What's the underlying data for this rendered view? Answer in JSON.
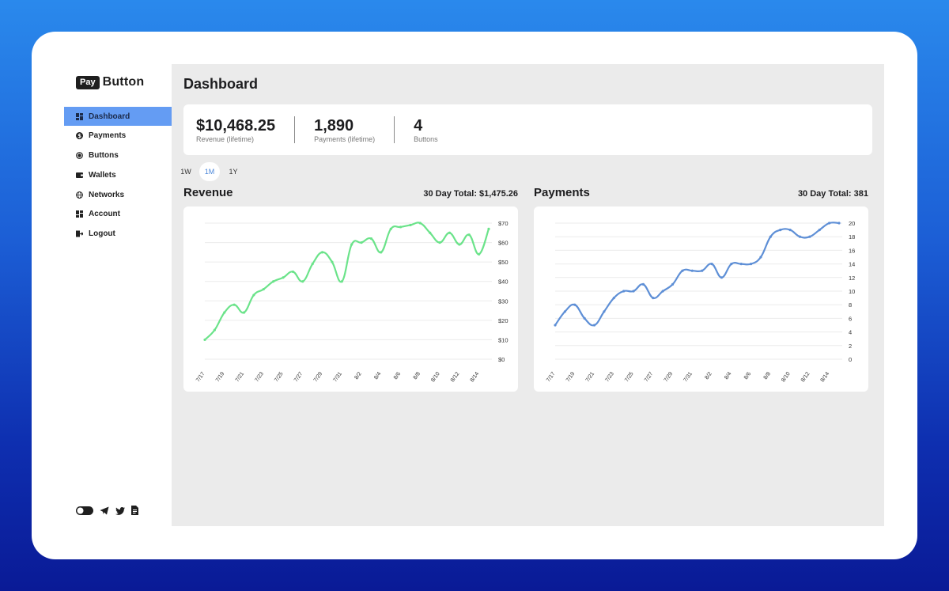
{
  "app": {
    "logo": {
      "badge": "Pay",
      "text": "Button"
    }
  },
  "sidebar": {
    "items": [
      {
        "label": "Dashboard",
        "icon": "dashboard-icon",
        "active": true
      },
      {
        "label": "Payments",
        "icon": "dollar-circle-icon",
        "active": false
      },
      {
        "label": "Buttons",
        "icon": "radio-button-icon",
        "active": false
      },
      {
        "label": "Wallets",
        "icon": "wallet-icon",
        "active": false
      },
      {
        "label": "Networks",
        "icon": "globe-icon",
        "active": false
      },
      {
        "label": "Account",
        "icon": "account-grid-icon",
        "active": false
      },
      {
        "label": "Logout",
        "icon": "logout-icon",
        "active": false
      }
    ],
    "footer_icons": [
      "theme-toggle-icon",
      "telegram-icon",
      "twitter-icon",
      "document-icon"
    ]
  },
  "main": {
    "title": "Dashboard",
    "stats": [
      {
        "value": "$10,468.25",
        "label": "Revenue (lifetime)"
      },
      {
        "value": "1,890",
        "label": "Payments (lifetime)"
      },
      {
        "value": "4",
        "label": "Buttons"
      }
    ],
    "range_tabs": [
      {
        "label": "1W",
        "active": false
      },
      {
        "label": "1M",
        "active": true
      },
      {
        "label": "1Y",
        "active": false
      }
    ],
    "revenue": {
      "title": "Revenue",
      "total": "30 Day Total: $1,475.26"
    },
    "payments": {
      "title": "Payments",
      "total": "30 Day Total: 381"
    }
  },
  "colors": {
    "accent": "#649cf3",
    "revenue_line": "#6be38a",
    "payments_line": "#5e8fd6",
    "main_bg": "#ebebeb"
  },
  "chart_data": [
    {
      "type": "line",
      "title": "Revenue",
      "subtitle": "30 Day Total: $1,475.26",
      "x": [
        "7/17",
        "7/18",
        "7/19",
        "7/20",
        "7/21",
        "7/22",
        "7/23",
        "7/24",
        "7/25",
        "7/26",
        "7/27",
        "7/28",
        "7/29",
        "7/30",
        "7/31",
        "8/1",
        "8/2",
        "8/3",
        "8/4",
        "8/5",
        "8/6",
        "8/7",
        "8/8",
        "8/9",
        "8/10",
        "8/11",
        "8/12",
        "8/13",
        "8/14",
        "8/15"
      ],
      "x_tick_labels": [
        "7/17",
        "7/19",
        "7/21",
        "7/23",
        "7/25",
        "7/27",
        "7/29",
        "7/31",
        "8/2",
        "8/4",
        "8/6",
        "8/8",
        "8/10",
        "8/12",
        "8/14"
      ],
      "series": [
        {
          "name": "Revenue",
          "color": "#6be38a",
          "values": [
            10,
            15,
            24,
            28,
            24,
            33,
            36,
            40,
            42,
            45,
            40,
            49,
            55,
            50,
            40,
            59,
            60,
            62,
            55,
            67,
            68,
            69,
            70,
            65,
            60,
            65,
            59,
            64,
            54,
            67
          ]
        }
      ],
      "y_tick_labels": [
        "$0",
        "$10",
        "$20",
        "$30",
        "$40",
        "$50",
        "$60",
        "$70"
      ],
      "ylim": [
        0,
        70
      ],
      "ystep": 10,
      "grid": true,
      "yaxis_position": "right",
      "xlabel": "",
      "ylabel": ""
    },
    {
      "type": "line",
      "title": "Payments",
      "subtitle": "30 Day Total: 381",
      "x": [
        "7/17",
        "7/18",
        "7/19",
        "7/20",
        "7/21",
        "7/22",
        "7/23",
        "7/24",
        "7/25",
        "7/26",
        "7/27",
        "7/28",
        "7/29",
        "7/30",
        "7/31",
        "8/1",
        "8/2",
        "8/3",
        "8/4",
        "8/5",
        "8/6",
        "8/7",
        "8/8",
        "8/9",
        "8/10",
        "8/11",
        "8/12",
        "8/13",
        "8/14",
        "8/15"
      ],
      "x_tick_labels": [
        "7/17",
        "7/19",
        "7/21",
        "7/23",
        "7/25",
        "7/27",
        "7/29",
        "7/31",
        "8/2",
        "8/4",
        "8/6",
        "8/8",
        "8/10",
        "8/12",
        "8/14"
      ],
      "series": [
        {
          "name": "Payments",
          "color": "#5e8fd6",
          "values": [
            5,
            7,
            8,
            6,
            5,
            7,
            9,
            10,
            10,
            11,
            9,
            10,
            11,
            13,
            13,
            13,
            14,
            12,
            14,
            14,
            14,
            15,
            18,
            19,
            19,
            18,
            18,
            19,
            20,
            20
          ]
        }
      ],
      "y_tick_labels": [
        "0",
        "2",
        "4",
        "6",
        "8",
        "10",
        "12",
        "14",
        "16",
        "18",
        "20"
      ],
      "ylim": [
        0,
        20
      ],
      "ystep": 2,
      "grid": true,
      "yaxis_position": "right",
      "xlabel": "",
      "ylabel": ""
    }
  ]
}
